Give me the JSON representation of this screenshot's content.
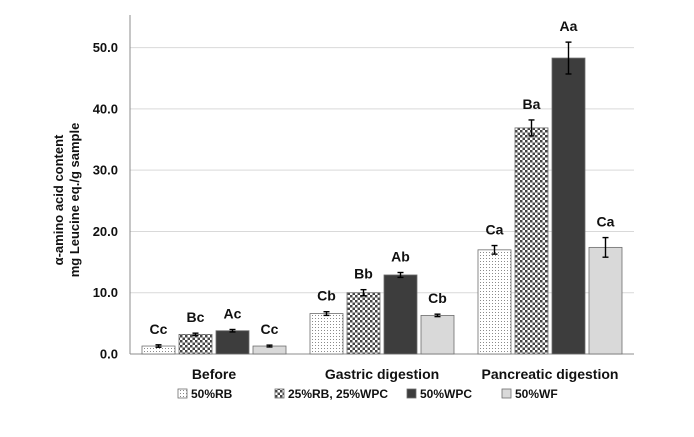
{
  "chart_data": {
    "type": "bar",
    "ylabel": [
      "α-amino acid content",
      "mg Leucine eq./g sample"
    ],
    "ylim": [
      0,
      55
    ],
    "yticks": [
      0,
      10,
      20,
      30,
      40,
      50
    ],
    "ytick_labels": [
      "0.0",
      "10.0",
      "20.0",
      "30.0",
      "40.0",
      "50.0"
    ],
    "grid": true,
    "categories": [
      "Before",
      "Gastric digestion",
      "Pancreatic digestion"
    ],
    "series": [
      {
        "name": "50%RB",
        "pattern": "dots",
        "color": "#ffffff",
        "values": [
          1.3,
          6.6,
          17.0
        ],
        "errors": [
          0.2,
          0.3,
          0.7
        ],
        "labels": [
          "Cc",
          "Cb",
          "Ca"
        ]
      },
      {
        "name": "25%RB, 25%WPC",
        "pattern": "checker",
        "color": "#555555",
        "values": [
          3.2,
          10.0,
          36.9
        ],
        "errors": [
          0.2,
          0.5,
          1.3
        ],
        "labels": [
          "Bc",
          "Bb",
          "Ba"
        ]
      },
      {
        "name": "50%WPC",
        "pattern": "solid",
        "color": "#3d3d3d",
        "values": [
          3.8,
          12.9,
          48.3
        ],
        "errors": [
          0.2,
          0.4,
          2.6
        ],
        "labels": [
          "Ac",
          "Ab",
          "Aa"
        ]
      },
      {
        "name": "50%WF",
        "pattern": "solid",
        "color": "#d9d9d9",
        "values": [
          1.3,
          6.3,
          17.4
        ],
        "errors": [
          0.15,
          0.2,
          1.6
        ],
        "labels": [
          "Cc",
          "Cb",
          "Ca"
        ]
      }
    ],
    "legend": "bottom"
  }
}
